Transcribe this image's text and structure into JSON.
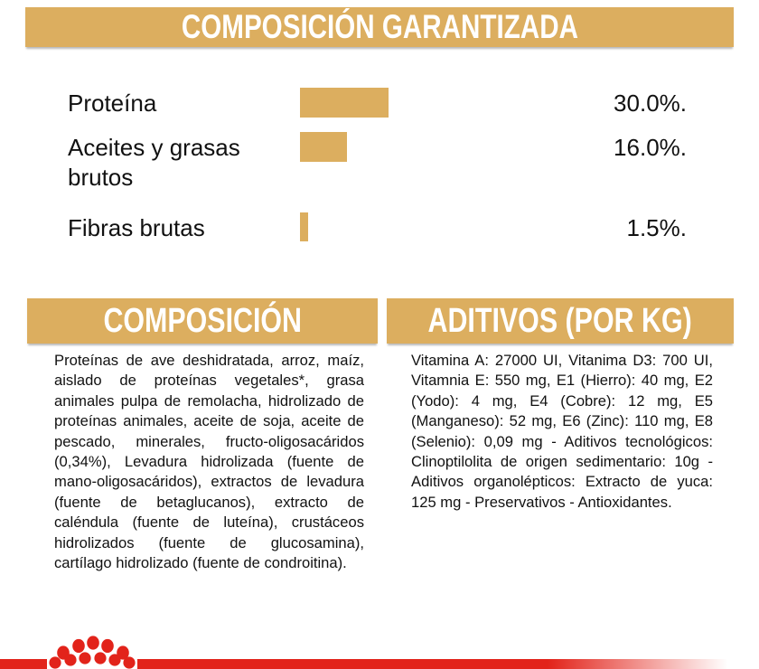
{
  "header": {
    "title": "COMPOSICIÓN GARANTIZADA"
  },
  "chart_data": {
    "type": "bar",
    "orientation": "horizontal",
    "title": "COMPOSICIÓN GARANTIZADA",
    "categories": [
      "Proteína",
      "Aceites y grasas brutos",
      "Fibras brutas"
    ],
    "values": [
      30.0,
      16.0,
      1.5
    ],
    "value_labels": [
      "30.0%.",
      "16.0%.",
      "1.5%."
    ],
    "unit": "percent",
    "xlim": [
      0,
      30
    ],
    "bar_color": "#DCAE5F",
    "grid": false,
    "legend": "none",
    "axis_labels": "none"
  },
  "sections": {
    "left": {
      "title": "COMPOSICIÓN",
      "body": "Proteínas de ave deshidratada, arroz, maíz, aislado de proteínas vegetales*, grasa animales pulpa de remolacha, hidrolizado de proteínas animales, aceite de soja, aceite de pescado, minerales, fructo-oligosacáridos (0,34%), Levadura hidrolizada (fuente de mano-oligosacáridos), extractos de levadura (fuente de betaglucanos), extracto de caléndula (fuente de luteína), crustáceos hidrolizados (fuente de glucosamina), cartílago hidrolizado (fuente de condroitina)."
    },
    "right": {
      "title": "ADITIVOS (POR KG)",
      "body": "Vitamina A: 27000 UI, Vitanima D3: 700 UI, Vitamnia E: 550 mg, E1 (Hierro): 40 mg, E2 (Yodo): 4 mg, E4 (Cobre): 12 mg, E5 (Manganeso): 52 mg, E6 (Zinc): 110 mg, E8 (Selenio): 0,09 mg - Aditivos tecnológicos: Clinoptilolita de origen sedimentario: 10g - Aditivos organolépticos: Extracto de yuca: 125 mg - Preservativos - Antioxidantes."
    }
  },
  "footer": {
    "logo": "royal-canin-crown"
  },
  "colors": {
    "gold": "#DCAE5F",
    "red": "#E2231A",
    "text": "#111111"
  }
}
